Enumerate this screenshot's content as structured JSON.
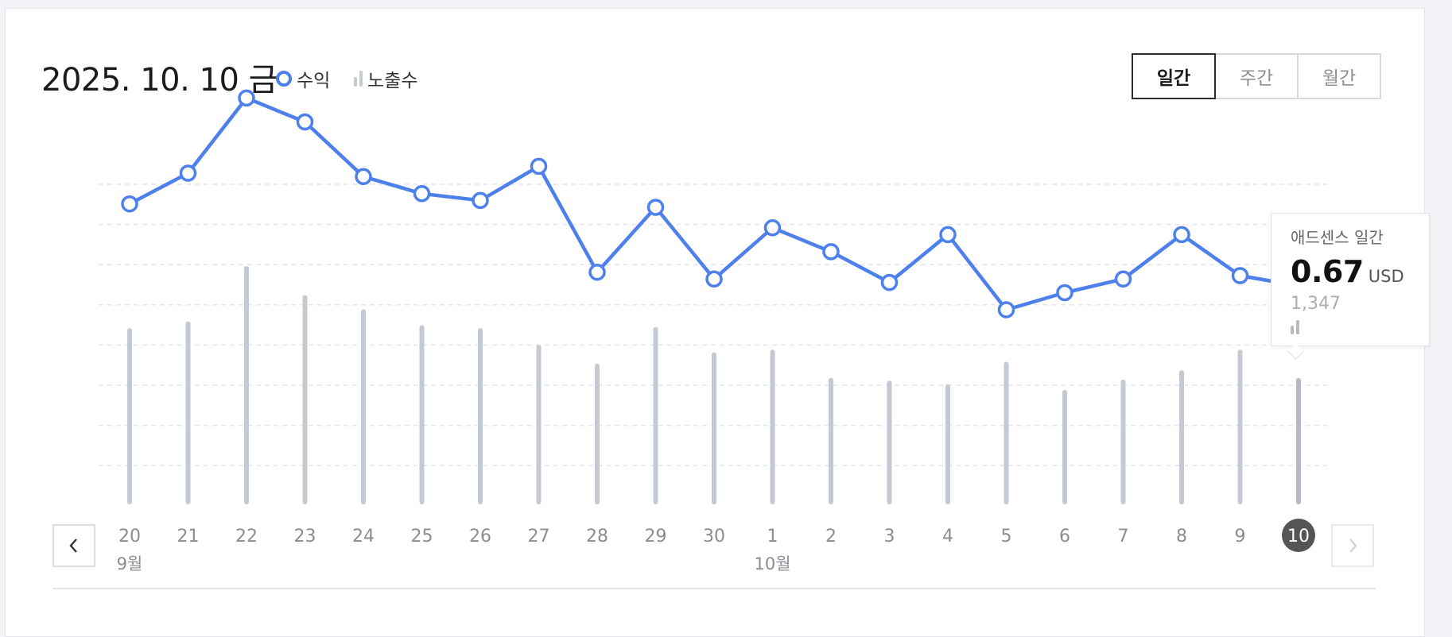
{
  "header": {
    "date": "2025. 10. 10 금",
    "legend_revenue": "수익",
    "legend_impressions": "노출수"
  },
  "period_tabs": [
    "일간",
    "주간",
    "월간"
  ],
  "active_tab": "일간",
  "tooltip": {
    "title": "애드센스 일간",
    "value": "0.67",
    "unit": "USD",
    "impressions": "1,347"
  },
  "colors": {
    "revenue": "#4d80ea",
    "impressions": "#c4cad1",
    "selected_badge": "#555555"
  },
  "icons": {
    "prev": "chevron-left-icon",
    "next": "chevron-right-icon"
  },
  "chart_data": {
    "type": "line",
    "categories": [
      "20",
      "21",
      "22",
      "23",
      "24",
      "25",
      "26",
      "27",
      "28",
      "29",
      "30",
      "1",
      "2",
      "3",
      "4",
      "5",
      "6",
      "7",
      "8",
      "9",
      "10"
    ],
    "month_labels": [
      {
        "index": 0,
        "label": "9월"
      },
      {
        "index": 11,
        "label": "10월"
      }
    ],
    "selected_index": 20,
    "series": [
      {
        "name": "수익",
        "type": "line",
        "values": [
          0.91,
          1.0,
          1.22,
          1.15,
          0.99,
          0.94,
          0.92,
          1.02,
          0.71,
          0.9,
          0.69,
          0.84,
          0.77,
          0.68,
          0.82,
          0.6,
          0.65,
          0.69,
          0.82,
          0.7,
          0.67
        ]
      },
      {
        "name": "노출수",
        "type": "bar",
        "values": [
          1880,
          1950,
          2540,
          2230,
          2080,
          1910,
          1880,
          1700,
          1500,
          1890,
          1620,
          1650,
          1350,
          1320,
          1280,
          1520,
          1220,
          1330,
          1430,
          1650,
          1347
        ]
      }
    ],
    "grid": true,
    "legend_position": "top-left"
  }
}
